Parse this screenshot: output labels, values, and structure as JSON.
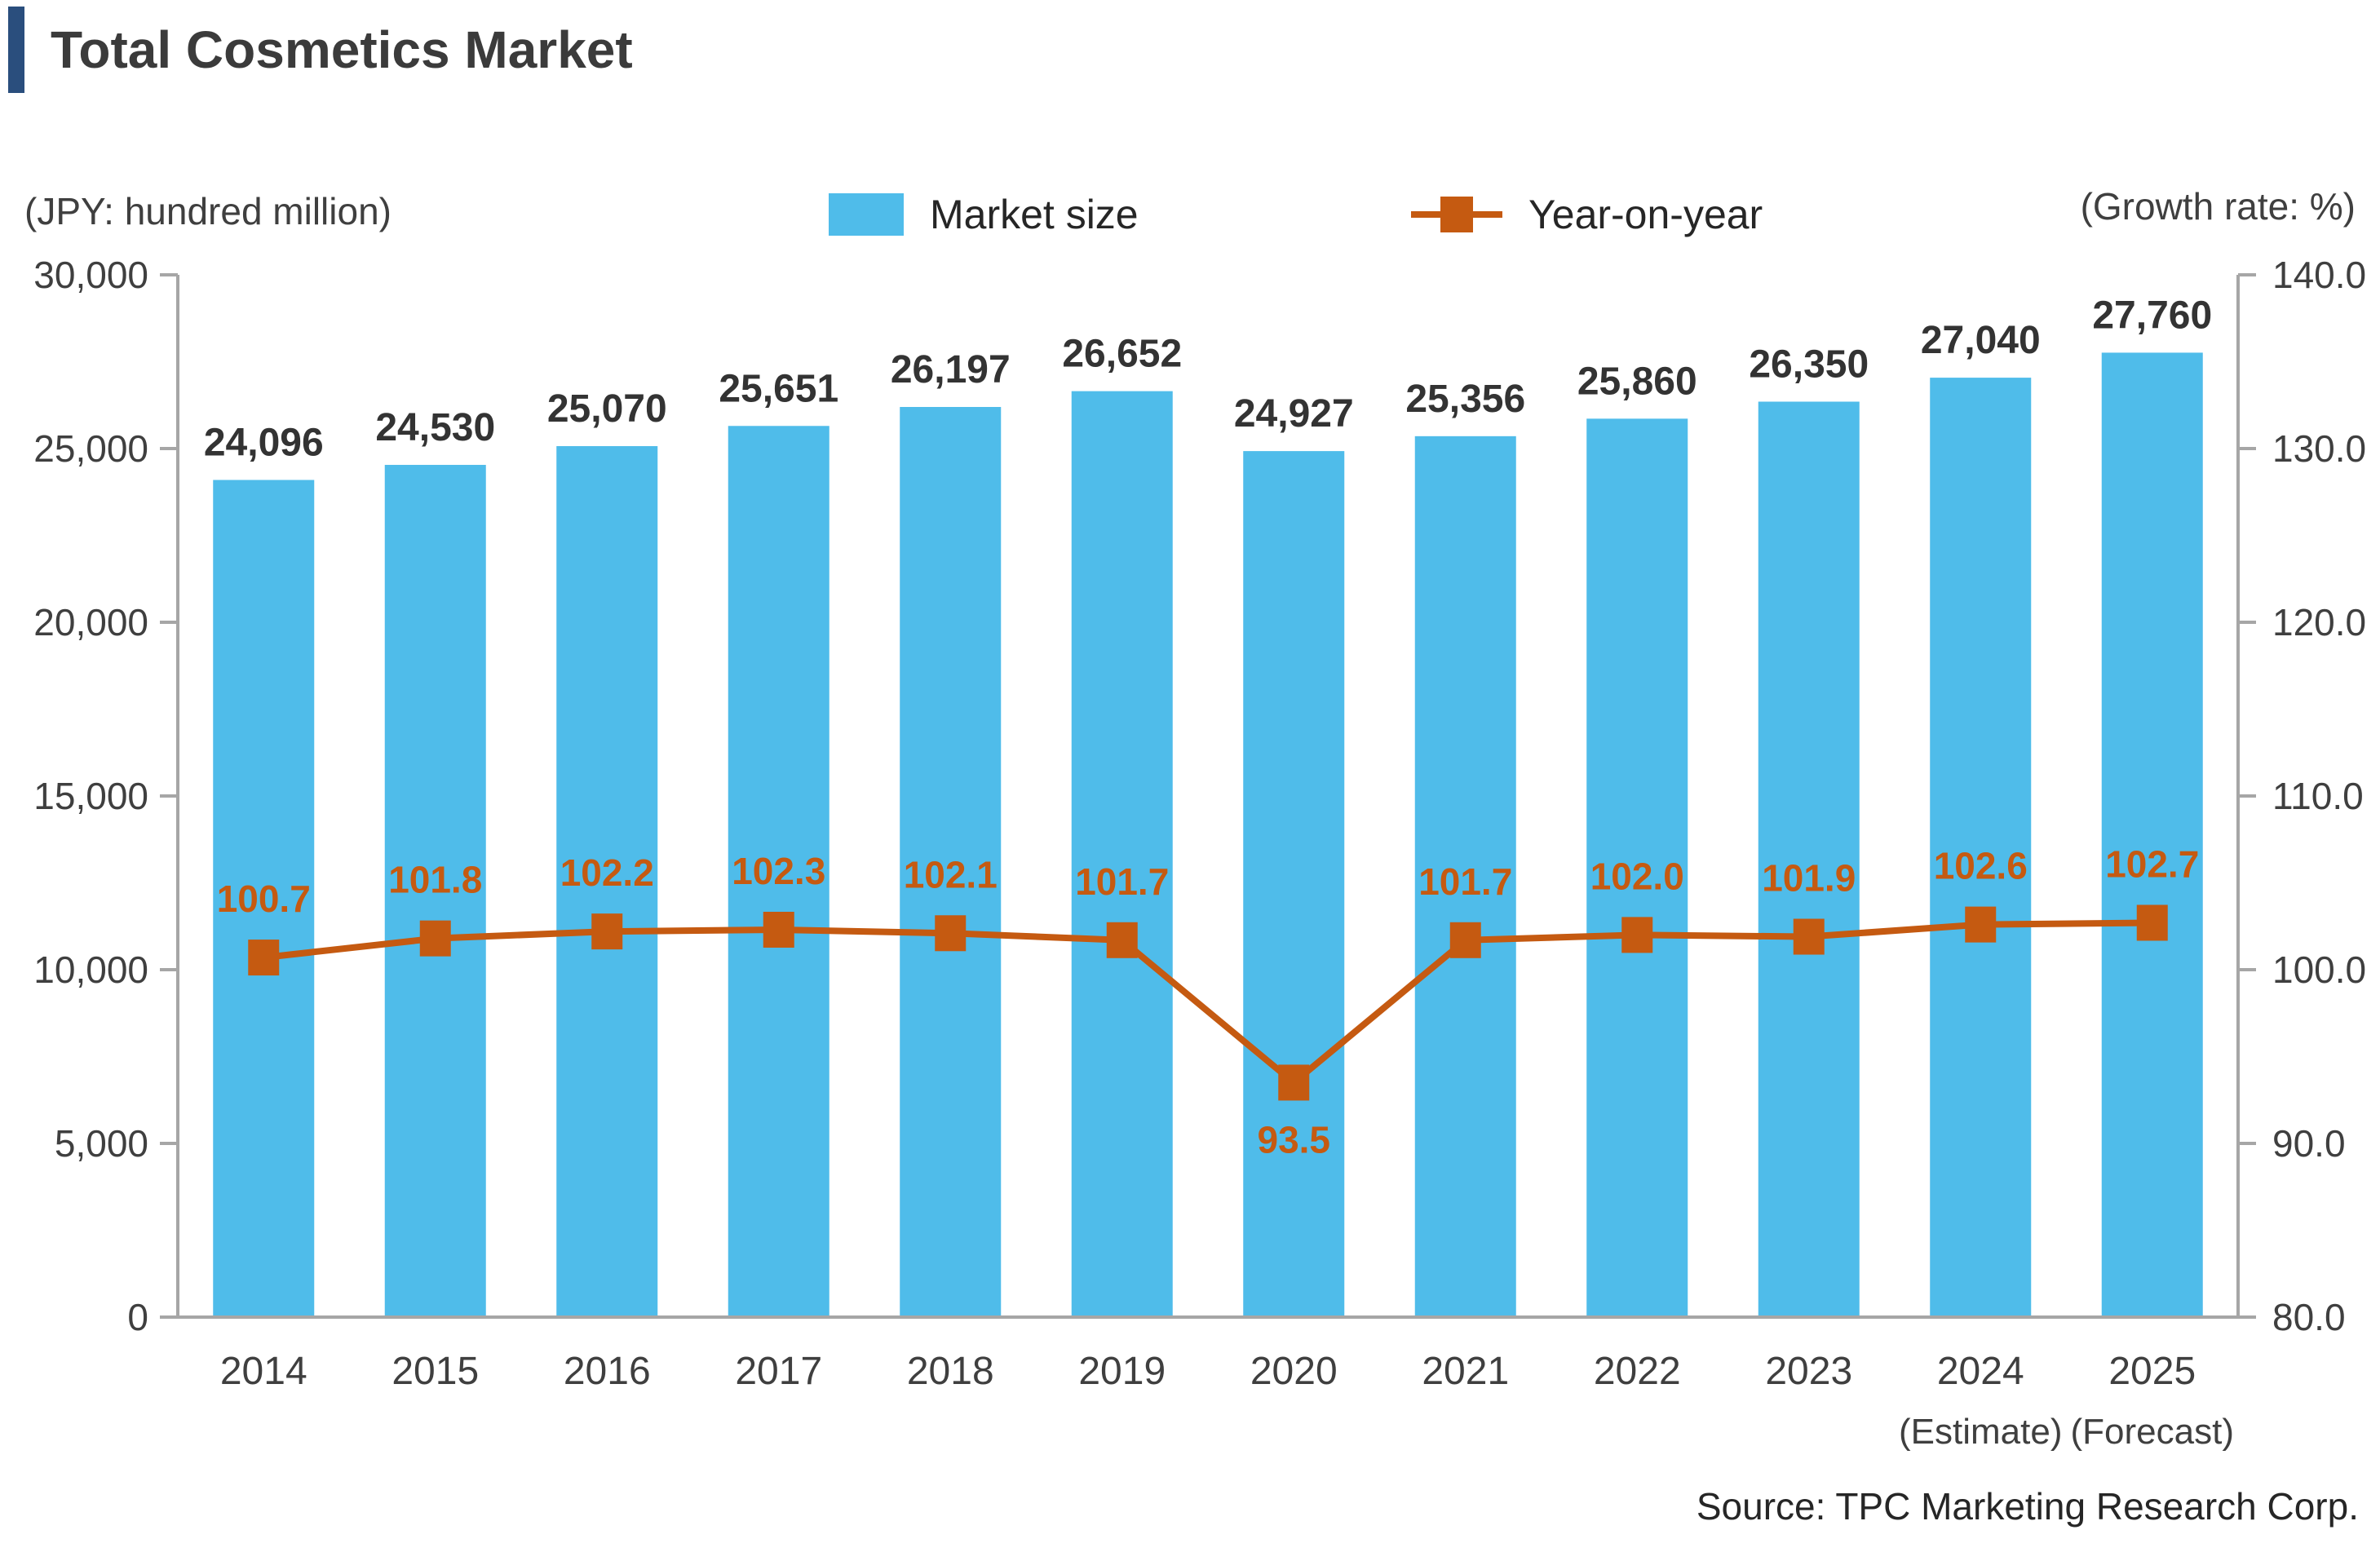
{
  "header": {
    "title": "Total Cosmetics Market"
  },
  "legend": {
    "market_size_label": "Market size",
    "year_on_year_label": "Year-on-year"
  },
  "axis_captions": {
    "left": "(JPY:  hundred million)",
    "right": "(Growth rate: %)"
  },
  "source": "Source: TPC Marketing Research Corp.",
  "colors": {
    "bar": "#4FBCEA",
    "line": "#C55A11",
    "axis": "#A6A6A6",
    "accent": "#2A4E7D",
    "tick_text": "#3F3F3F",
    "bar_label_text": "#333333"
  },
  "chart_data": {
    "type": "bar+line combo",
    "title": "Total Cosmetics Market",
    "grid": false,
    "legend_position": "top",
    "categories": [
      "2014",
      "2015",
      "2016",
      "2017",
      "2018",
      "2019",
      "2020",
      "2021",
      "2022",
      "2023",
      "2024",
      "2025"
    ],
    "category_sublabels": {
      "2024": "(Estimate)",
      "2025": "(Forecast)"
    },
    "series": [
      {
        "name": "Market size",
        "type": "bar",
        "axis": "left",
        "values": [
          24096,
          24530,
          25070,
          25651,
          26197,
          26652,
          24927,
          25356,
          25860,
          26350,
          27040,
          27760
        ],
        "labels": [
          "24,096",
          "24,530",
          "25,070",
          "25,651",
          "26,197",
          "26,652",
          "24,927",
          "25,356",
          "25,860",
          "26,350",
          "27,040",
          "27,760"
        ]
      },
      {
        "name": "Year-on-year",
        "type": "line",
        "axis": "right",
        "values": [
          100.7,
          101.8,
          102.2,
          102.3,
          102.1,
          101.7,
          93.5,
          101.7,
          102.0,
          101.9,
          102.6,
          102.7
        ],
        "labels": [
          "100.7",
          "101.8",
          "102.2",
          "102.3",
          "102.1",
          "101.7",
          "93.5",
          "101.7",
          "102.0",
          "101.9",
          "102.6",
          "102.7"
        ],
        "labels_below": [
          "2020"
        ]
      }
    ],
    "left_axis": {
      "min": 0,
      "max": 30000,
      "step": 5000,
      "tick_labels": [
        "30,000",
        "25,000",
        "20,000",
        "15,000",
        "10,000",
        "5,000",
        "0"
      ]
    },
    "right_axis": {
      "min": 80,
      "max": 140,
      "step": 10,
      "tick_labels": [
        "140.0",
        "130.0",
        "120.0",
        "110.0",
        "100.0",
        "90.0",
        "80.0"
      ]
    }
  }
}
